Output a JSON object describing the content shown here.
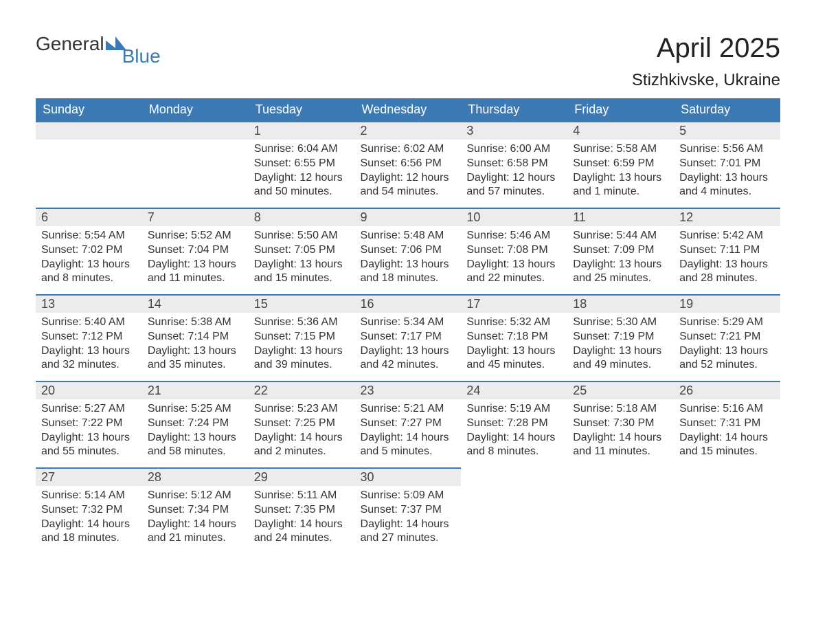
{
  "logo": {
    "text1": "General",
    "text2": "Blue",
    "mark_color": "#3c7ab5"
  },
  "title": "April 2025",
  "location": "Stizhkivske, Ukraine",
  "colors": {
    "header_bg": "#3c7ab5",
    "header_text": "#ffffff",
    "band_bg": "#ececec",
    "band_border": "#3c7ab5",
    "body_text": "#333333",
    "page_bg": "#ffffff"
  },
  "typography": {
    "month_title_size_pt": 30,
    "location_size_pt": 18,
    "dayheader_size_pt": 14,
    "daynum_size_pt": 14,
    "body_size_pt": 12
  },
  "day_headers": [
    "Sunday",
    "Monday",
    "Tuesday",
    "Wednesday",
    "Thursday",
    "Friday",
    "Saturday"
  ],
  "weeks": [
    [
      null,
      null,
      {
        "n": "1",
        "sunrise": "Sunrise: 6:04 AM",
        "sunset": "Sunset: 6:55 PM",
        "daylight": "Daylight: 12 hours and 50 minutes."
      },
      {
        "n": "2",
        "sunrise": "Sunrise: 6:02 AM",
        "sunset": "Sunset: 6:56 PM",
        "daylight": "Daylight: 12 hours and 54 minutes."
      },
      {
        "n": "3",
        "sunrise": "Sunrise: 6:00 AM",
        "sunset": "Sunset: 6:58 PM",
        "daylight": "Daylight: 12 hours and 57 minutes."
      },
      {
        "n": "4",
        "sunrise": "Sunrise: 5:58 AM",
        "sunset": "Sunset: 6:59 PM",
        "daylight": "Daylight: 13 hours and 1 minute."
      },
      {
        "n": "5",
        "sunrise": "Sunrise: 5:56 AM",
        "sunset": "Sunset: 7:01 PM",
        "daylight": "Daylight: 13 hours and 4 minutes."
      }
    ],
    [
      {
        "n": "6",
        "sunrise": "Sunrise: 5:54 AM",
        "sunset": "Sunset: 7:02 PM",
        "daylight": "Daylight: 13 hours and 8 minutes."
      },
      {
        "n": "7",
        "sunrise": "Sunrise: 5:52 AM",
        "sunset": "Sunset: 7:04 PM",
        "daylight": "Daylight: 13 hours and 11 minutes."
      },
      {
        "n": "8",
        "sunrise": "Sunrise: 5:50 AM",
        "sunset": "Sunset: 7:05 PM",
        "daylight": "Daylight: 13 hours and 15 minutes."
      },
      {
        "n": "9",
        "sunrise": "Sunrise: 5:48 AM",
        "sunset": "Sunset: 7:06 PM",
        "daylight": "Daylight: 13 hours and 18 minutes."
      },
      {
        "n": "10",
        "sunrise": "Sunrise: 5:46 AM",
        "sunset": "Sunset: 7:08 PM",
        "daylight": "Daylight: 13 hours and 22 minutes."
      },
      {
        "n": "11",
        "sunrise": "Sunrise: 5:44 AM",
        "sunset": "Sunset: 7:09 PM",
        "daylight": "Daylight: 13 hours and 25 minutes."
      },
      {
        "n": "12",
        "sunrise": "Sunrise: 5:42 AM",
        "sunset": "Sunset: 7:11 PM",
        "daylight": "Daylight: 13 hours and 28 minutes."
      }
    ],
    [
      {
        "n": "13",
        "sunrise": "Sunrise: 5:40 AM",
        "sunset": "Sunset: 7:12 PM",
        "daylight": "Daylight: 13 hours and 32 minutes."
      },
      {
        "n": "14",
        "sunrise": "Sunrise: 5:38 AM",
        "sunset": "Sunset: 7:14 PM",
        "daylight": "Daylight: 13 hours and 35 minutes."
      },
      {
        "n": "15",
        "sunrise": "Sunrise: 5:36 AM",
        "sunset": "Sunset: 7:15 PM",
        "daylight": "Daylight: 13 hours and 39 minutes."
      },
      {
        "n": "16",
        "sunrise": "Sunrise: 5:34 AM",
        "sunset": "Sunset: 7:17 PM",
        "daylight": "Daylight: 13 hours and 42 minutes."
      },
      {
        "n": "17",
        "sunrise": "Sunrise: 5:32 AM",
        "sunset": "Sunset: 7:18 PM",
        "daylight": "Daylight: 13 hours and 45 minutes."
      },
      {
        "n": "18",
        "sunrise": "Sunrise: 5:30 AM",
        "sunset": "Sunset: 7:19 PM",
        "daylight": "Daylight: 13 hours and 49 minutes."
      },
      {
        "n": "19",
        "sunrise": "Sunrise: 5:29 AM",
        "sunset": "Sunset: 7:21 PM",
        "daylight": "Daylight: 13 hours and 52 minutes."
      }
    ],
    [
      {
        "n": "20",
        "sunrise": "Sunrise: 5:27 AM",
        "sunset": "Sunset: 7:22 PM",
        "daylight": "Daylight: 13 hours and 55 minutes."
      },
      {
        "n": "21",
        "sunrise": "Sunrise: 5:25 AM",
        "sunset": "Sunset: 7:24 PM",
        "daylight": "Daylight: 13 hours and 58 minutes."
      },
      {
        "n": "22",
        "sunrise": "Sunrise: 5:23 AM",
        "sunset": "Sunset: 7:25 PM",
        "daylight": "Daylight: 14 hours and 2 minutes."
      },
      {
        "n": "23",
        "sunrise": "Sunrise: 5:21 AM",
        "sunset": "Sunset: 7:27 PM",
        "daylight": "Daylight: 14 hours and 5 minutes."
      },
      {
        "n": "24",
        "sunrise": "Sunrise: 5:19 AM",
        "sunset": "Sunset: 7:28 PM",
        "daylight": "Daylight: 14 hours and 8 minutes."
      },
      {
        "n": "25",
        "sunrise": "Sunrise: 5:18 AM",
        "sunset": "Sunset: 7:30 PM",
        "daylight": "Daylight: 14 hours and 11 minutes."
      },
      {
        "n": "26",
        "sunrise": "Sunrise: 5:16 AM",
        "sunset": "Sunset: 7:31 PM",
        "daylight": "Daylight: 14 hours and 15 minutes."
      }
    ],
    [
      {
        "n": "27",
        "sunrise": "Sunrise: 5:14 AM",
        "sunset": "Sunset: 7:32 PM",
        "daylight": "Daylight: 14 hours and 18 minutes."
      },
      {
        "n": "28",
        "sunrise": "Sunrise: 5:12 AM",
        "sunset": "Sunset: 7:34 PM",
        "daylight": "Daylight: 14 hours and 21 minutes."
      },
      {
        "n": "29",
        "sunrise": "Sunrise: 5:11 AM",
        "sunset": "Sunset: 7:35 PM",
        "daylight": "Daylight: 14 hours and 24 minutes."
      },
      {
        "n": "30",
        "sunrise": "Sunrise: 5:09 AM",
        "sunset": "Sunset: 7:37 PM",
        "daylight": "Daylight: 14 hours and 27 minutes."
      },
      null,
      null,
      null
    ]
  ]
}
